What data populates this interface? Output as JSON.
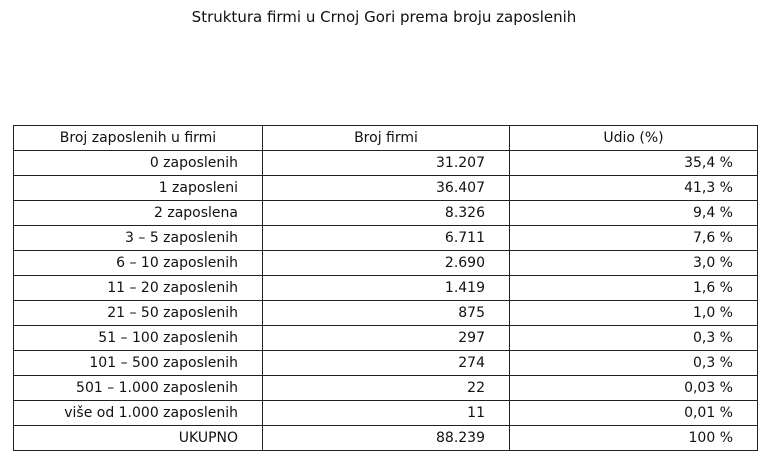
{
  "title": "Struktura firmi u Crnoj Gori prema broju zaposlenih",
  "table": {
    "columns": [
      "Broj zaposlenih u firmi",
      "Broj firmi",
      "Udio (%)"
    ],
    "rows": [
      [
        "0 zaposlenih",
        "31.207",
        "35,4 %"
      ],
      [
        "1 zaposleni",
        "36.407",
        "41,3 %"
      ],
      [
        "2 zaposlena",
        "8.326",
        "9,4 %"
      ],
      [
        "3 – 5 zaposlenih",
        "6.711",
        "7,6 %"
      ],
      [
        "6 – 10 zaposlenih",
        "2.690",
        "3,0 %"
      ],
      [
        "11 – 20 zaposlenih",
        "1.419",
        "1,6 %"
      ],
      [
        "21 – 50 zaposlenih",
        "875",
        "1,0 %"
      ],
      [
        "51 – 100 zaposlenih",
        "297",
        "0,3 %"
      ],
      [
        "101 – 500 zaposlenih",
        "274",
        "0,3 %"
      ],
      [
        "501 – 1.000 zaposlenih",
        "22",
        "0,03 %"
      ],
      [
        "više od 1.000 zaposlenih",
        "11",
        "0,01 %"
      ],
      [
        "UKUPNO",
        "88.239",
        "100 %"
      ]
    ]
  }
}
